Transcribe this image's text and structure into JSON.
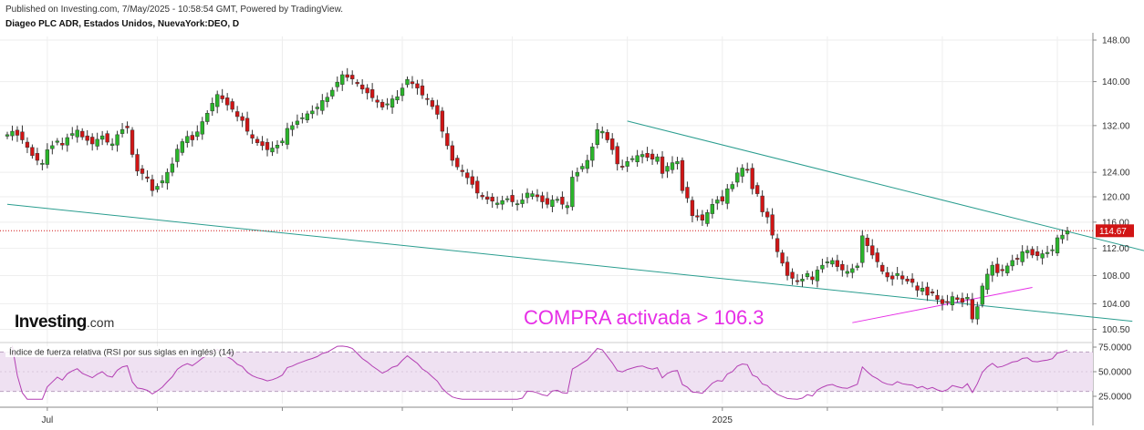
{
  "header": {
    "published": "Published on Investing.com, 7/May/2025 - 10:58:54 GMT, Powered by TradingView.",
    "instrument": "Diageo PLC ADR, Estados Unidos, NuevaYork:DEO, D"
  },
  "logo": {
    "brand": "Investing",
    "suffix": ".com"
  },
  "colors": {
    "up": "#2ab52a",
    "down": "#d11515",
    "trend": "#2a9d8f",
    "annotation": "#e62ee6",
    "rsi": "#b33fb3",
    "rsi_band": "#efe1f2"
  },
  "chart_data": {
    "type": "candlestick",
    "title": "Diageo PLC ADR, Estados Unidos, NuevaYork:DEO, D",
    "y_ticks": [
      100.5,
      104,
      108,
      112,
      116,
      120,
      124,
      132,
      140,
      148
    ],
    "y_tick_labels": [
      "100.50",
      "104.00",
      "108.00",
      "112.00",
      "116.00",
      "120.00",
      "124.00",
      "132.00",
      "140.00",
      "148.00"
    ],
    "y_scale": "log",
    "ylim": [
      99.5,
      148.5
    ],
    "x_labels": [
      {
        "text": "Jul",
        "index": 8
      },
      {
        "text": "2025",
        "index": 143
      }
    ],
    "last_price": 114.67,
    "last_price_label": "114.67",
    "annotation": "COMPRA activada > 106.3",
    "closes": [
      130.4,
      131.0,
      130.3,
      129.5,
      128.2,
      126.8,
      126.0,
      125.5,
      127.8,
      128.5,
      129.3,
      128.6,
      129.9,
      130.6,
      131.2,
      130.0,
      129.4,
      128.8,
      129.6,
      130.2,
      129.1,
      128.8,
      130.4,
      131.3,
      131.6,
      127.0,
      124.2,
      123.8,
      123.0,
      121.0,
      121.7,
      122.6,
      124.0,
      125.4,
      127.9,
      129.2,
      130.1,
      129.5,
      130.9,
      132.7,
      134.2,
      136.0,
      137.6,
      136.8,
      135.7,
      134.9,
      133.6,
      132.9,
      131.0,
      129.8,
      129.0,
      128.5,
      127.8,
      128.1,
      128.6,
      129.3,
      131.5,
      132.0,
      132.8,
      133.4,
      134.1,
      134.6,
      135.3,
      136.5,
      137.1,
      138.4,
      139.9,
      141.3,
      140.8,
      140.5,
      139.6,
      138.6,
      137.9,
      137.0,
      136.2,
      135.3,
      135.9,
      136.8,
      137.2,
      138.8,
      140.4,
      139.6,
      138.8,
      137.5,
      136.7,
      135.4,
      134.0,
      131.0,
      128.5,
      126.0,
      124.9,
      124.1,
      123.1,
      122.0,
      120.6,
      120.0,
      119.6,
      119.3,
      119.0,
      119.4,
      119.7,
      119.2,
      118.9,
      119.5,
      120.6,
      120.5,
      120.0,
      119.2,
      118.8,
      119.5,
      119.6,
      118.8,
      118.6,
      123.2,
      124.0,
      125.0,
      126.0,
      128.3,
      131.3,
      131.0,
      129.5,
      127.8,
      125.4,
      125.0,
      125.8,
      126.3,
      126.8,
      127.0,
      126.5,
      126.2,
      126.6,
      123.8,
      125.0,
      125.6,
      125.8,
      121.0,
      119.8,
      117.0,
      116.8,
      116.3,
      117.5,
      118.8,
      119.5,
      119.3,
      121.3,
      122.0,
      123.9,
      124.7,
      124.5,
      121.3,
      120.5,
      117.6,
      116.8,
      114.0,
      111.5,
      109.8,
      108.0,
      107.6,
      107.2,
      107.5,
      108.3,
      107.4,
      108.8,
      109.5,
      110.0,
      110.2,
      109.3,
      108.8,
      108.6,
      109.0,
      109.4,
      113.9,
      112.4,
      111.0,
      110.0,
      108.6,
      107.8,
      107.5,
      108.3,
      107.5,
      107.2,
      107.0,
      105.9,
      106.2,
      105.2,
      105.5,
      104.6,
      104.0,
      104.3,
      105.0,
      104.6,
      104.2,
      104.9,
      101.9,
      103.6,
      106.5,
      108.2,
      109.5,
      108.4,
      108.7,
      109.4,
      110.2,
      110.5,
      111.5,
      111.7,
      111.0,
      110.9,
      111.2,
      111.4,
      111.8,
      113.6,
      114.0,
      114.67
    ],
    "rsi": {
      "label": "Índice de fuerza relativa (RSI por sus siglas en inglés) (14)",
      "y_ticks": [
        25,
        50,
        75
      ],
      "y_tick_labels": [
        "25.0000",
        "50.0000",
        "75.0000"
      ],
      "ylim": [
        20,
        78
      ],
      "band": [
        30,
        70
      ]
    },
    "trendlines": [
      {
        "name": "upper",
        "from": {
          "index": 124,
          "value": 132.8
        },
        "to": {
          "index": 239,
          "value": 109.5
        }
      },
      {
        "name": "lower",
        "from": {
          "index": 0,
          "value": 118.8
        },
        "to": {
          "index": 225,
          "value": 101.6
        }
      },
      {
        "name": "annotation",
        "from": {
          "index": 169,
          "value": 101.4
        },
        "to": {
          "index": 205,
          "value": 106.3
        }
      }
    ]
  }
}
